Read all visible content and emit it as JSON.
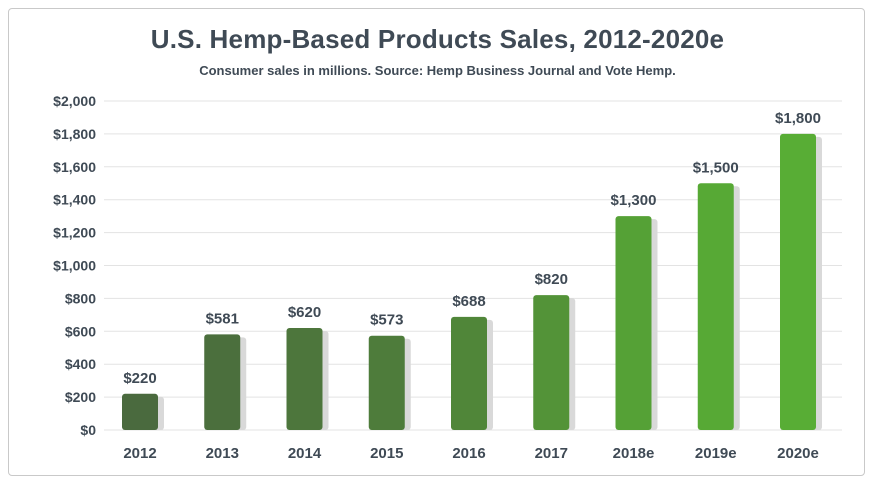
{
  "chart_data": {
    "type": "bar",
    "title": "U.S. Hemp-Based Products Sales, 2012-2020e",
    "subtitle": "Consumer sales in millions. Source: Hemp Business Journal and Vote Hemp.",
    "xlabel": "",
    "ylabel": "",
    "ylim": [
      0,
      2000
    ],
    "yticks": [
      0,
      200,
      400,
      600,
      800,
      1000,
      1200,
      1400,
      1600,
      1800,
      2000
    ],
    "ytick_labels": [
      "$0",
      "$200",
      "$400",
      "$600",
      "$800",
      "$1,000",
      "$1,200",
      "$1,400",
      "$1,600",
      "$1,800",
      "$2,000"
    ],
    "categories": [
      "2012",
      "2013",
      "2014",
      "2015",
      "2016",
      "2017",
      "2018e",
      "2019e",
      "2020e"
    ],
    "values": [
      220,
      581,
      620,
      573,
      688,
      820,
      1300,
      1500,
      1800
    ],
    "value_labels": [
      "$220",
      "$581",
      "$620",
      "$573",
      "$688",
      "$820",
      "$1,300",
      "$1,500",
      "$1,800"
    ],
    "bar_colors": [
      "#4a6a3e",
      "#4b6f3d",
      "#4d763c",
      "#4e7c3b",
      "#508639",
      "#539338",
      "#55a136",
      "#57a935",
      "#58ad35"
    ],
    "grid": true,
    "legend": "none"
  }
}
